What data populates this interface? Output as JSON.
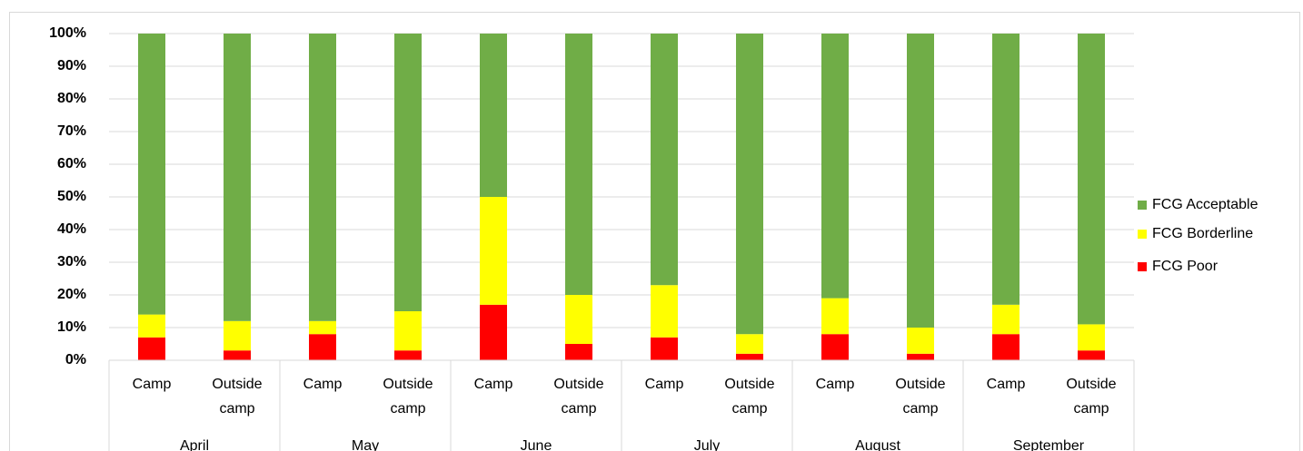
{
  "chart_data": {
    "type": "stacked_bar",
    "categories": [
      "Camp",
      "Outside camp",
      "Camp",
      "Outside camp",
      "Camp",
      "Outside camp",
      "Camp",
      "Outside camp",
      "Camp",
      "Outside camp",
      "Camp",
      "Outside camp"
    ],
    "groups": [
      "April",
      "May",
      "June",
      "July",
      "August",
      "September"
    ],
    "series": [
      {
        "name": "FCG Poor",
        "color": "#ff0000",
        "values": [
          7,
          3,
          8,
          3,
          17,
          5,
          7,
          2,
          8,
          2,
          8,
          3
        ]
      },
      {
        "name": "FCG Borderline",
        "color": "#ffff00",
        "values": [
          7,
          9,
          4,
          12,
          33,
          15,
          16,
          6,
          11,
          8,
          9,
          8
        ]
      },
      {
        "name": "FCG Acceptable",
        "color": "#70ad47",
        "values": [
          86,
          88,
          88,
          85,
          50,
          80,
          77,
          92,
          81,
          90,
          83,
          89
        ]
      }
    ],
    "ylim": [
      0,
      100
    ],
    "yticks": [
      {
        "value": 0,
        "label": "0%"
      },
      {
        "value": 10,
        "label": "10%"
      },
      {
        "value": 20,
        "label": "20%"
      },
      {
        "value": 30,
        "label": "30%"
      },
      {
        "value": 40,
        "label": "40%"
      },
      {
        "value": 50,
        "label": "50%"
      },
      {
        "value": 60,
        "label": "60%"
      },
      {
        "value": 70,
        "label": "70%"
      },
      {
        "value": 80,
        "label": "80%"
      },
      {
        "value": 90,
        "label": "90%"
      },
      {
        "value": 100,
        "label": "100%"
      }
    ],
    "grid": true,
    "legend": "right"
  }
}
